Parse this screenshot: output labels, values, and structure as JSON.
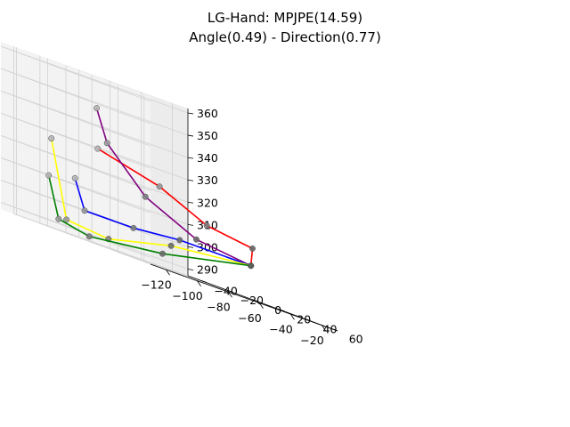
{
  "chart_data": {
    "type": "line3d",
    "title_lines": [
      "LG-Hand: MPJPE(14.59)",
      "Angle(0.49) - Direction(0.77)"
    ],
    "x_ticks": [
      "−120",
      "−100",
      "−80",
      "−60",
      "−40",
      "−20"
    ],
    "y_ticks": [
      "−40",
      "−20",
      "0",
      "20",
      "40",
      "60"
    ],
    "z_ticks": [
      "290",
      "300",
      "310",
      "320",
      "330",
      "340",
      "350",
      "360"
    ],
    "xlim": [
      -130,
      -10
    ],
    "ylim": [
      -50,
      65
    ],
    "zlim": [
      287,
      362
    ],
    "grid": true,
    "series": [
      {
        "color": "#ff0000",
        "values": [
          {
            "x": -18,
            "y": 8,
            "z": 302
          },
          {
            "x": -22,
            "y": 14,
            "z": 310
          },
          {
            "x": -58,
            "y": 22,
            "z": 313
          },
          {
            "x": -90,
            "y": 24,
            "z": 323
          },
          {
            "x": -118,
            "y": 10,
            "z": 330
          }
        ]
      },
      {
        "color": "#800080",
        "values": [
          {
            "x": -18,
            "y": 8,
            "z": 302
          },
          {
            "x": -48,
            "y": 2,
            "z": 305
          },
          {
            "x": -84,
            "y": 6,
            "z": 316
          },
          {
            "x": -112,
            "y": 10,
            "z": 334
          },
          {
            "x": -122,
            "y": 14,
            "z": 348
          }
        ]
      },
      {
        "color": "#0000ff",
        "values": [
          {
            "x": -18,
            "y": 8,
            "z": 302
          },
          {
            "x": -52,
            "y": -6,
            "z": 302
          },
          {
            "x": -80,
            "y": -8,
            "z": 300
          },
          {
            "x": -113,
            "y": -6,
            "z": 300
          },
          {
            "x": -120,
            "y": -5,
            "z": 313
          }
        ]
      },
      {
        "color": "#ffff00",
        "values": [
          {
            "x": -18,
            "y": 8,
            "z": 302
          },
          {
            "x": -50,
            "y": -15,
            "z": 298
          },
          {
            "x": -86,
            "y": -20,
            "z": 291
          },
          {
            "x": -118,
            "y": -14,
            "z": 293
          },
          {
            "x": -126,
            "y": -16,
            "z": 327
          }
        ]
      },
      {
        "color": "#008000",
        "values": [
          {
            "x": -18,
            "y": 8,
            "z": 302
          },
          {
            "x": -48,
            "y": -24,
            "z": 293
          },
          {
            "x": -90,
            "y": -30,
            "z": 289
          },
          {
            "x": -118,
            "y": -20,
            "z": 292
          },
          {
            "x": -126,
            "y": -18,
            "z": 310
          }
        ]
      }
    ]
  }
}
